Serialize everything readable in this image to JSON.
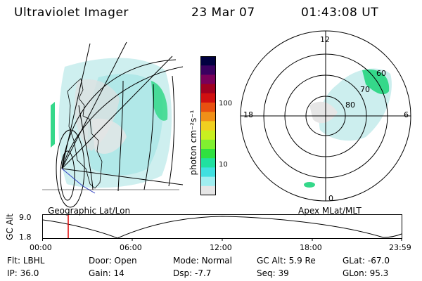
{
  "header": {
    "title": "Ultraviolet Imager",
    "date": "23 Mar 07",
    "time": "01:43:08 UT"
  },
  "colorbar": {
    "label": "photon cm⁻²s⁻¹",
    "ticks": [
      "100",
      "10"
    ],
    "colors": [
      "#000040",
      "#3a0060",
      "#7a005a",
      "#a00020",
      "#d01010",
      "#e85010",
      "#f09018",
      "#f0d020",
      "#c8f020",
      "#80f030",
      "#30e040",
      "#20e0a0",
      "#40e0e0",
      "#a0eef0",
      "#e6e6e6"
    ]
  },
  "geo_panel": {
    "caption": "Geographic Lat/Lon"
  },
  "polar_panel": {
    "caption": "Apex MLat/MLT",
    "mlt_labels": {
      "top": "12",
      "left": "18",
      "right": "6",
      "bottom": "0"
    },
    "lat_labels": [
      "60",
      "70",
      "80"
    ]
  },
  "timeline": {
    "ylabel": "GC Alt",
    "ymax": "9.0",
    "ymin": "1.8",
    "xticks": [
      "00:00",
      "06:00",
      "12:00",
      "18:00",
      "23:59"
    ],
    "marker_time": "01:43"
  },
  "info": {
    "row1": [
      {
        "key": "Flt:",
        "val": "LBHL"
      },
      {
        "key": "Door:",
        "val": "Open"
      },
      {
        "key": "Mode:",
        "val": "Normal"
      },
      {
        "key": "GC Alt:",
        "val": "5.9 Re"
      },
      {
        "key": "GLat:",
        "val": "-67.0"
      }
    ],
    "row2": [
      {
        "key": "IP:",
        "val": "36.0"
      },
      {
        "key": "Gain:",
        "val": "14"
      },
      {
        "key": "Dsp:",
        "val": "-7.7"
      },
      {
        "key": "Seq:",
        "val": "39"
      },
      {
        "key": "GLon:",
        "val": "95.3"
      }
    ]
  }
}
